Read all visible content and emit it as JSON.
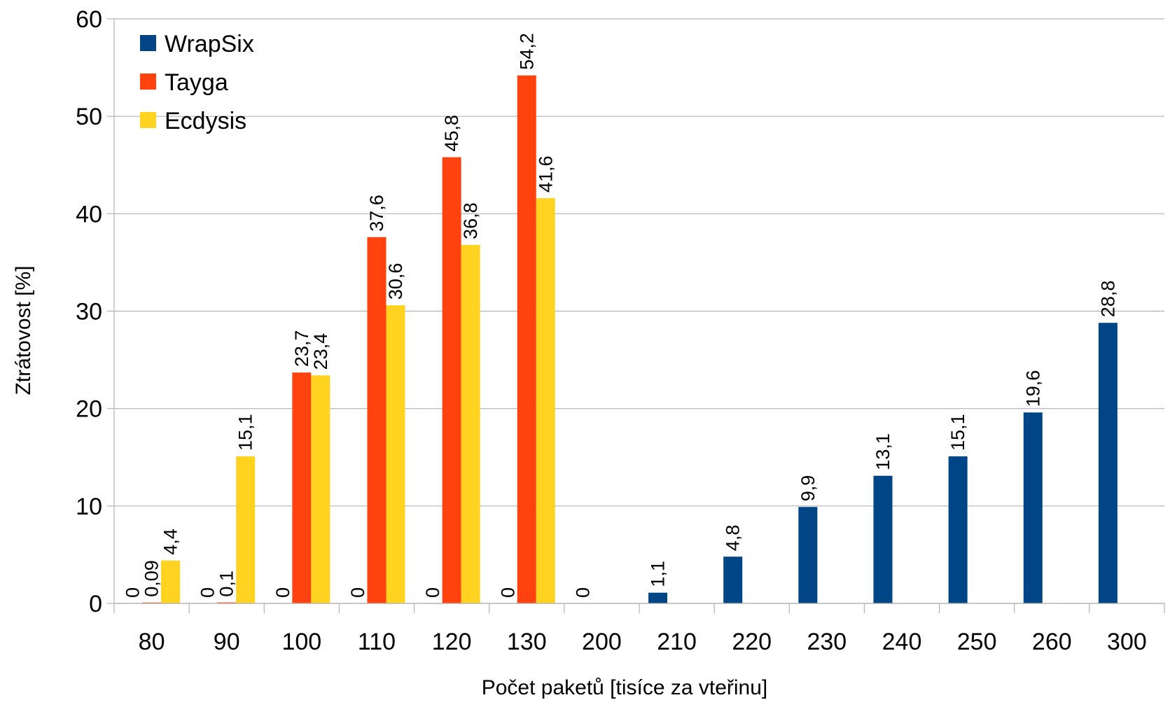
{
  "chart_data": {
    "type": "bar",
    "xlabel": "Počet paketů [tisíce za vteřinu]",
    "ylabel": "Ztrátovost [%]",
    "ylim": [
      0,
      60
    ],
    "yticks": [
      "0",
      "10",
      "20",
      "30",
      "40",
      "50",
      "60"
    ],
    "grid": true,
    "legend_position": "top-left",
    "categories": [
      "80",
      "90",
      "100",
      "110",
      "120",
      "130",
      "200",
      "210",
      "220",
      "230",
      "240",
      "250",
      "260",
      "300"
    ],
    "series": [
      {
        "name": "WrapSix",
        "color": "#004586",
        "values": [
          0,
          0,
          0,
          0,
          0,
          0,
          0,
          1.1,
          4.8,
          9.9,
          13.1,
          15.1,
          19.6,
          28.8
        ],
        "labels": [
          "0",
          "0",
          "0",
          "0",
          "0",
          "0",
          "0",
          "1,1",
          "4,8",
          "9,9",
          "13,1",
          "15,1",
          "19,6",
          "28,8"
        ]
      },
      {
        "name": "Tayga",
        "color": "#ff420e",
        "values": [
          0.09,
          0.1,
          23.7,
          37.6,
          45.8,
          54.2,
          null,
          null,
          null,
          null,
          null,
          null,
          null,
          null
        ],
        "labels": [
          "0,09",
          "0,1",
          "23,7",
          "37,6",
          "45,8",
          "54,2",
          "",
          "",
          "",
          "",
          "",
          "",
          "",
          ""
        ]
      },
      {
        "name": "Ecdysis",
        "color": "#ffd320",
        "values": [
          4.4,
          15.1,
          23.4,
          30.6,
          36.8,
          41.6,
          null,
          null,
          null,
          null,
          null,
          null,
          null,
          null
        ],
        "labels": [
          "4,4",
          "15,1",
          "23,4",
          "30,6",
          "36,8",
          "41,6",
          "",
          "",
          "",
          "",
          "",
          "",
          "",
          ""
        ]
      }
    ]
  }
}
